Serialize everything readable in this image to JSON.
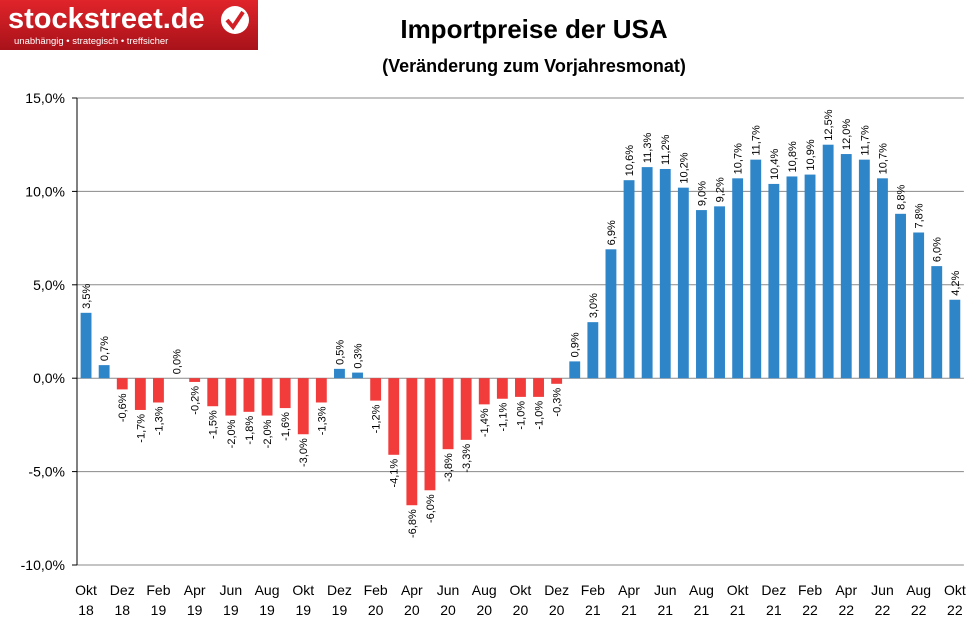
{
  "logo": {
    "name": "stockstreet.de",
    "tagline": "unabhängig • strategisch • treffsicher"
  },
  "chart_data": {
    "type": "bar",
    "title": "Importpreise der USA",
    "subtitle": "(Veränderung zum Vorjahresmonat)",
    "categories": [
      "Okt 18",
      null,
      "Dez 18",
      null,
      "Feb 19",
      null,
      "Apr 19",
      null,
      "Jun 19",
      null,
      "Aug 19",
      null,
      "Okt 19",
      null,
      "Dez 19",
      null,
      "Feb 20",
      null,
      "Apr 20",
      null,
      "Jun 20",
      null,
      "Aug 20",
      null,
      "Okt 20",
      null,
      "Dez 20",
      null,
      "Feb 21",
      null,
      "Apr 21",
      null,
      "Jun 21",
      null,
      "Aug 21",
      null,
      "Okt 21",
      null,
      "Dez 21",
      null,
      "Feb 22",
      null,
      "Apr 22",
      null,
      "Jun 22",
      null,
      "Aug 22",
      null,
      "Okt 22"
    ],
    "values": [
      3.5,
      0.7,
      -0.6,
      -1.7,
      -1.3,
      0.0,
      -0.2,
      -1.5,
      -2.0,
      -1.8,
      -2.0,
      -1.6,
      -3.0,
      -1.3,
      0.5,
      0.3,
      -1.2,
      -4.1,
      -6.8,
      -6.0,
      -3.8,
      -3.3,
      -1.4,
      -1.1,
      -1.0,
      -1.0,
      -0.3,
      0.9,
      3.0,
      6.9,
      10.6,
      11.3,
      11.2,
      10.2,
      9.0,
      9.2,
      10.7,
      11.7,
      10.4,
      10.8,
      10.9,
      12.5,
      12.0,
      11.7,
      10.7,
      8.8,
      7.8,
      6.0,
      4.2
    ],
    "value_labels": [
      "3,5%",
      "0,7%",
      "-0,6%",
      "-1,7%",
      "-1,3%",
      "0,0%",
      "-0,2%",
      "-1,5%",
      "-2,0%",
      "-1,8%",
      "-2,0%",
      "-1,6%",
      "-3,0%",
      "-1,3%",
      "0,5%",
      "0,3%",
      "-1,2%",
      "-4,1%",
      "-6,8%",
      "-6,0%",
      "-3,8%",
      "-3,3%",
      "-1,4%",
      "-1,1%",
      "-1,0%",
      "-1,0%",
      "-0,3%",
      "0,9%",
      "3,0%",
      "6,9%",
      "10,6%",
      "11,3%",
      "11,2%",
      "10,2%",
      "9,0%",
      "9,2%",
      "10,7%",
      "11,7%",
      "10,4%",
      "10,8%",
      "10,9%",
      "12,5%",
      "12,0%",
      "11,7%",
      "10,7%",
      "8,8%",
      "7,8%",
      "6,0%",
      "4,2%"
    ],
    "color_positive": "#2e86c9",
    "color_negative": "#f23b3b",
    "ylim": [
      -10,
      15
    ],
    "yticks": [
      {
        "value": -10,
        "label": "-10,0%"
      },
      {
        "value": -5,
        "label": "-5,0%"
      },
      {
        "value": 0,
        "label": "0,0%"
      },
      {
        "value": 5,
        "label": "5,0%"
      },
      {
        "value": 10,
        "label": "10,0%"
      },
      {
        "value": 15,
        "label": "15,0%"
      }
    ],
    "grid": true
  }
}
